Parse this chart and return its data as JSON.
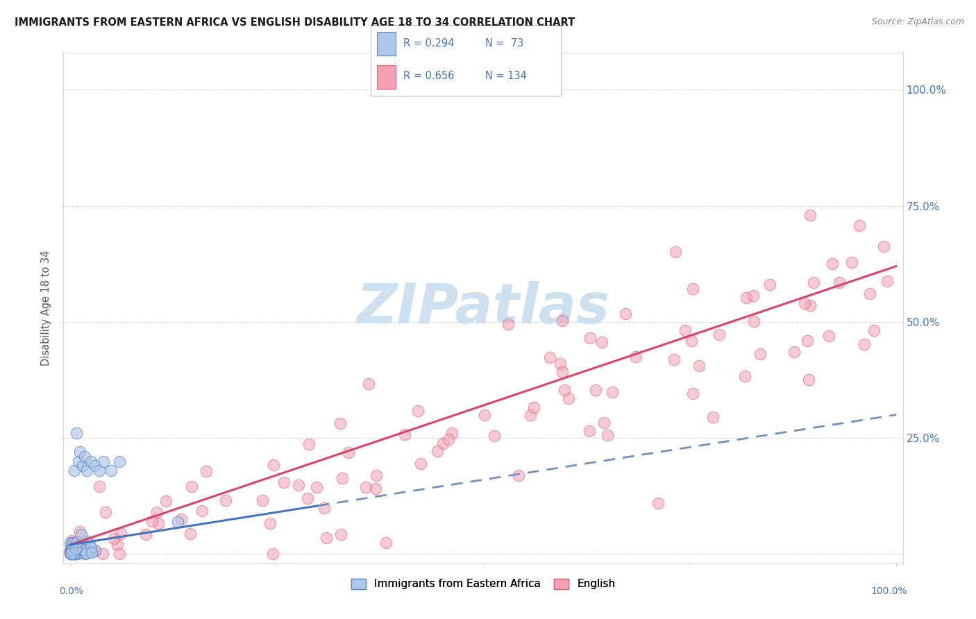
{
  "title": "IMMIGRANTS FROM EASTERN AFRICA VS ENGLISH DISABILITY AGE 18 TO 34 CORRELATION CHART",
  "source": "Source: ZipAtlas.com",
  "ylabel": "Disability Age 18 to 34",
  "bottom_labels": [
    "Immigrants from Eastern Africa",
    "English"
  ],
  "legend_blue_R": "R = 0.294",
  "legend_blue_N": "N =  73",
  "legend_pink_R": "R = 0.656",
  "legend_pink_N": "N = 134",
  "blue_fill_color": "#aec6e8",
  "blue_edge_color": "#5b8dc8",
  "pink_fill_color": "#f4a0b0",
  "pink_edge_color": "#e06080",
  "blue_line_color": "#4472c4",
  "blue_dash_color": "#7090c0",
  "pink_line_color": "#e0406a",
  "right_tick_color": "#4472c4",
  "watermark_color": "#cce0f0",
  "grid_color": "#d8d8d8",
  "title_color": "#1a1a1a",
  "source_color": "#888888",
  "ylabel_color": "#555555",
  "background": "#ffffff"
}
